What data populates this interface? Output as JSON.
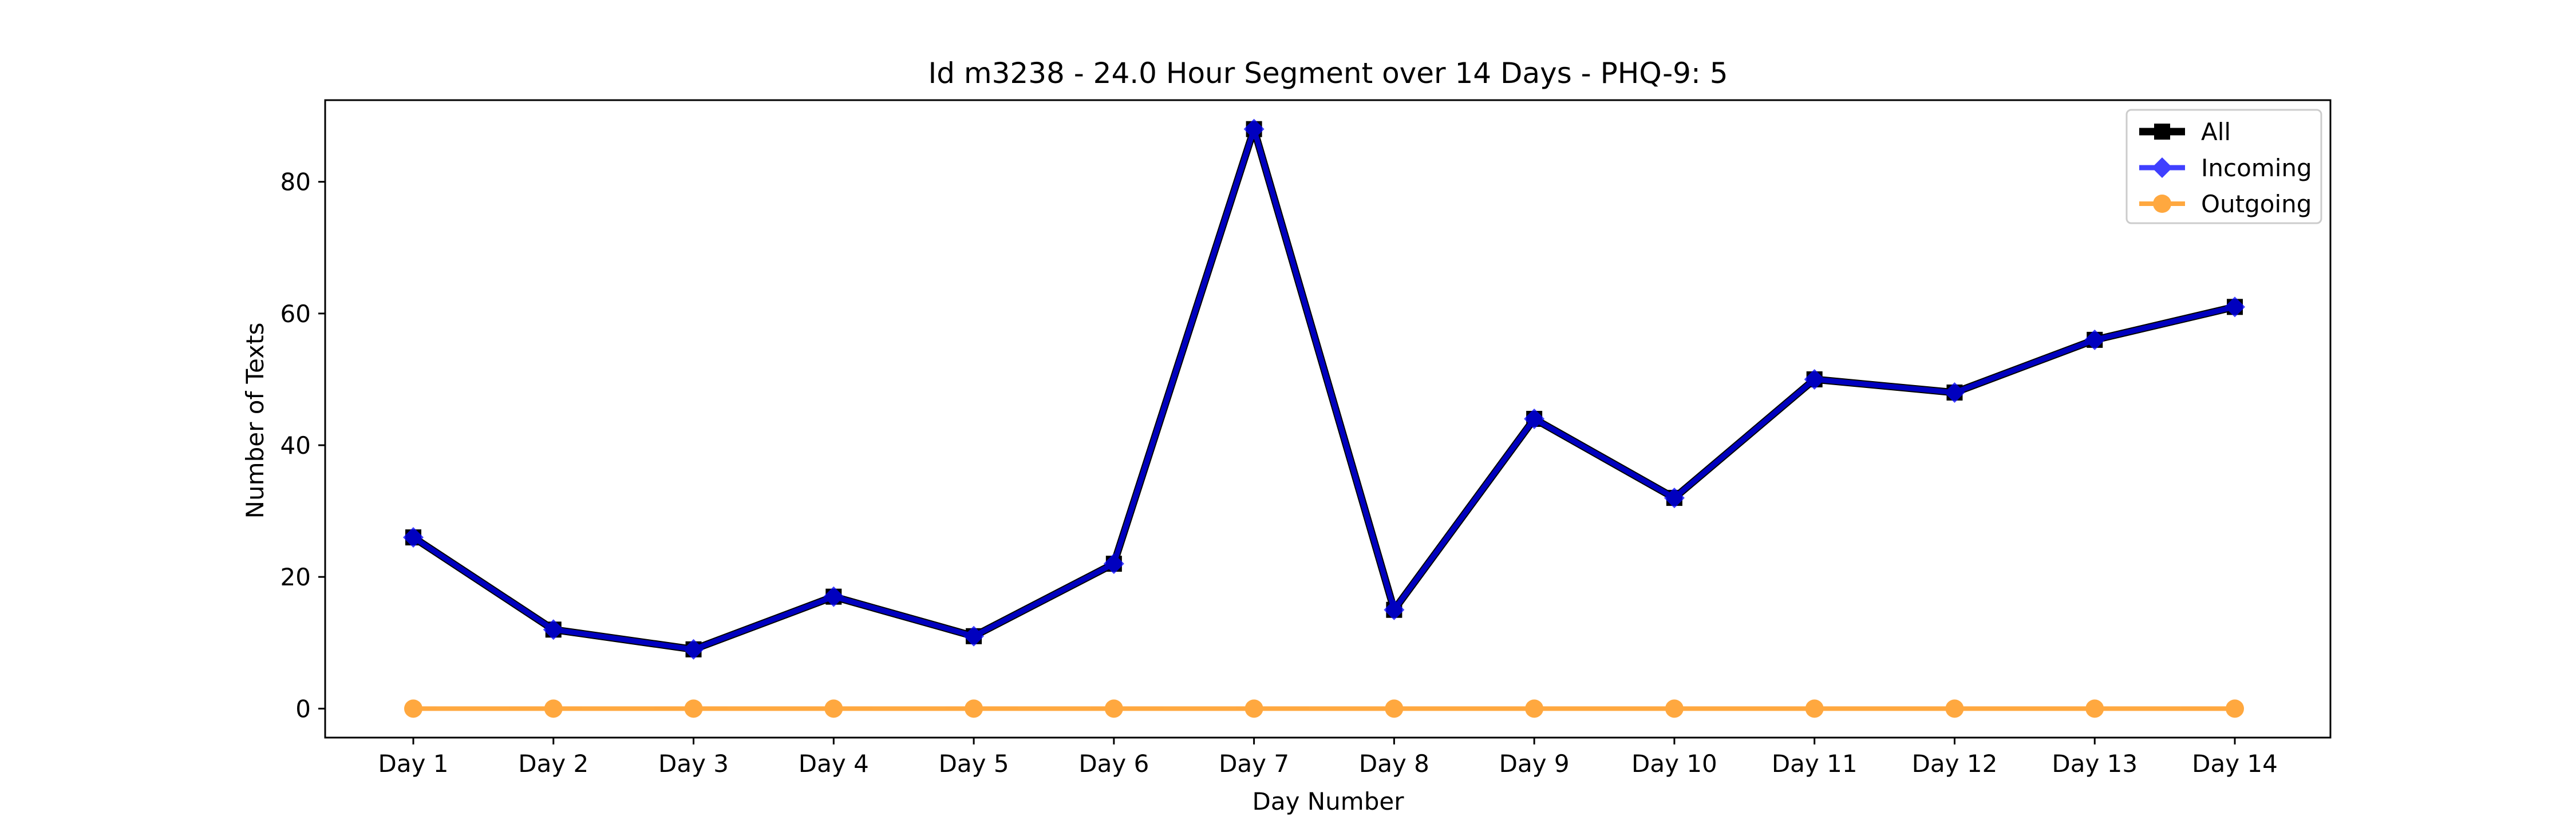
{
  "chart_data": {
    "type": "line",
    "title": "Id m3238 - 24.0 Hour Segment over 14 Days - PHQ-9: 5",
    "xlabel": "Day Number",
    "ylabel": "Number of Texts",
    "categories": [
      "Day 1",
      "Day 2",
      "Day 3",
      "Day 4",
      "Day 5",
      "Day 6",
      "Day 7",
      "Day 8",
      "Day 9",
      "Day 10",
      "Day 11",
      "Day 12",
      "Day 13",
      "Day 14"
    ],
    "ylim": [
      -4.4,
      92.4
    ],
    "yticks": [
      0,
      20,
      40,
      60,
      80
    ],
    "grid": false,
    "legend_position": "upper right",
    "series": [
      {
        "name": "All",
        "values": [
          26,
          12,
          9,
          17,
          11,
          22,
          88,
          15,
          44,
          32,
          50,
          48,
          56,
          61
        ],
        "color": "#000000",
        "marker": "square"
      },
      {
        "name": "Incoming",
        "values": [
          26,
          12,
          9,
          17,
          11,
          22,
          88,
          15,
          44,
          32,
          50,
          48,
          56,
          61
        ],
        "color": "#0000ff",
        "marker": "diamond"
      },
      {
        "name": "Outgoing",
        "values": [
          0,
          0,
          0,
          0,
          0,
          0,
          0,
          0,
          0,
          0,
          0,
          0,
          0,
          0
        ],
        "color": "#ff8c00",
        "marker": "circle"
      }
    ]
  }
}
